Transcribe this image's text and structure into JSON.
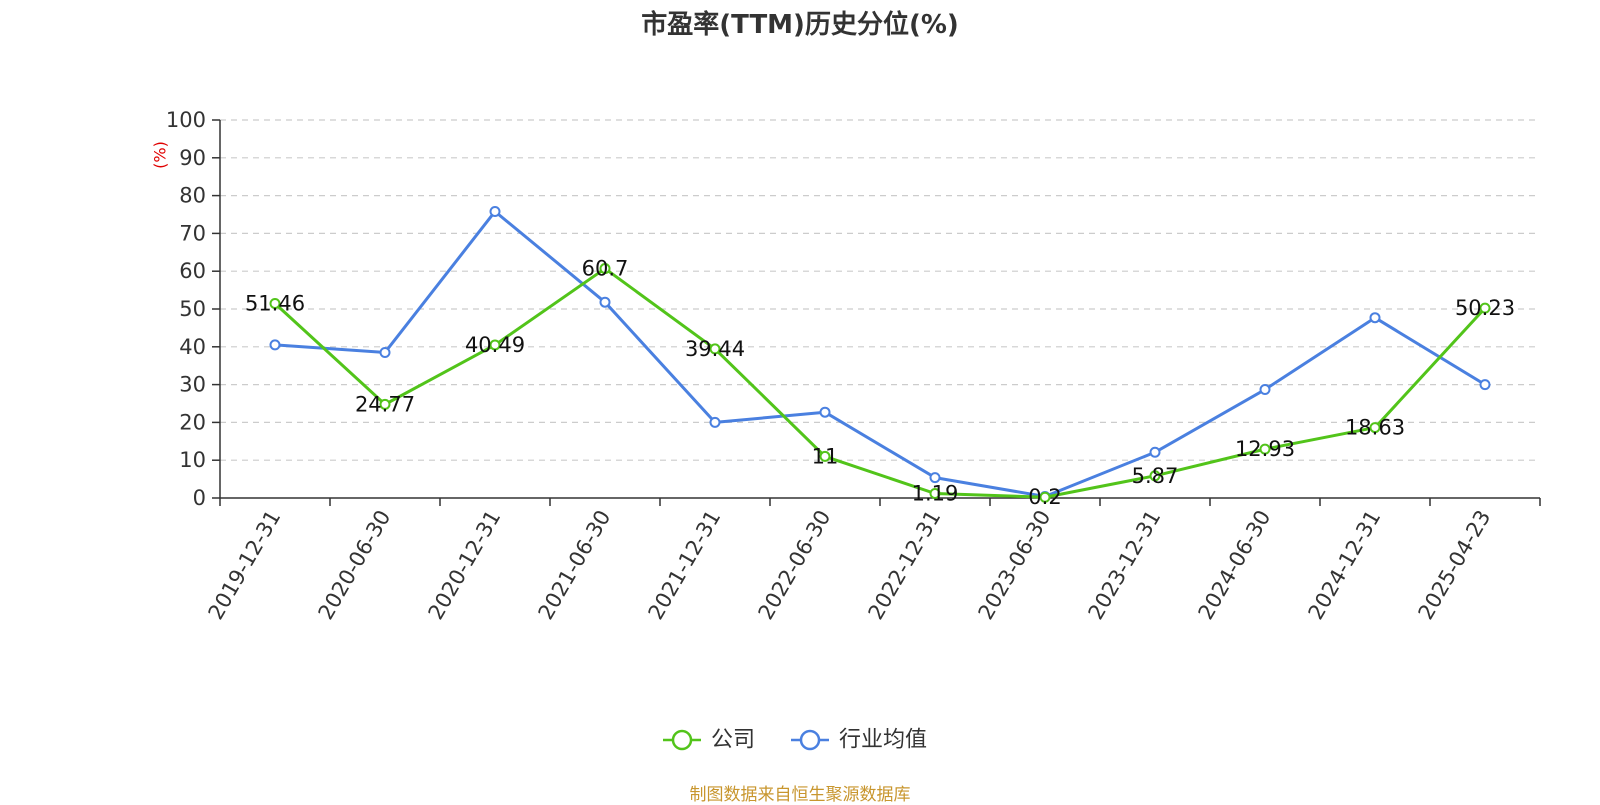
{
  "chart_data": {
    "type": "line",
    "title": "市盈率(TTM)历史分位(%)",
    "ylabel": "(%)",
    "xlabel": "",
    "ylim": [
      0,
      100
    ],
    "yticks": [
      0,
      10,
      20,
      30,
      40,
      50,
      60,
      70,
      80,
      90,
      100
    ],
    "grid": true,
    "legend_position": "bottom-center",
    "categories": [
      "2019-12-31",
      "2020-06-30",
      "2020-12-31",
      "2021-06-30",
      "2021-12-31",
      "2022-06-30",
      "2022-12-31",
      "2023-06-30",
      "2023-12-31",
      "2024-06-30",
      "2024-12-31",
      "2025-04-23"
    ],
    "series": [
      {
        "name": "公司",
        "color": "#52c41a",
        "show_labels": true,
        "values": [
          51.46,
          24.77,
          40.49,
          60.7,
          39.44,
          11,
          1.19,
          0.2,
          5.87,
          12.93,
          18.63,
          50.23
        ]
      },
      {
        "name": "行业均值",
        "color": "#4a80e0",
        "show_labels": false,
        "values": [
          40.5,
          38.5,
          75.8,
          51.8,
          20.0,
          22.7,
          5.4,
          0.4,
          12.1,
          28.7,
          47.7,
          30.0
        ]
      }
    ]
  },
  "source_note": "制图数据来自恒生聚源数据库"
}
